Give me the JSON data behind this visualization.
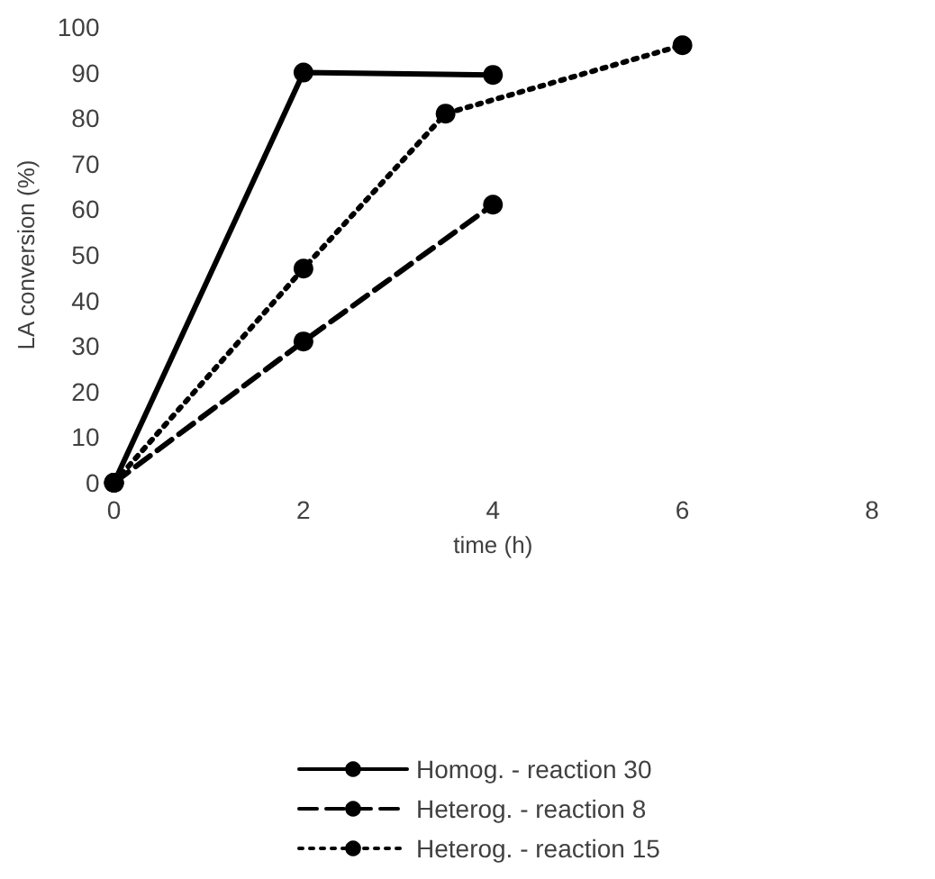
{
  "chart_data": {
    "type": "line",
    "xlabel": "time (h)",
    "ylabel": "LA conversion (%)",
    "xlim": [
      0,
      8
    ],
    "xticks": [
      0,
      2,
      4,
      6,
      8
    ],
    "ylim": [
      0,
      100
    ],
    "yticks": [
      0,
      10,
      20,
      30,
      40,
      50,
      60,
      70,
      80,
      90,
      100
    ],
    "grid": false,
    "legend": "bottom",
    "marker": "circle",
    "series": [
      {
        "name": "Homog. - reaction 30",
        "color": "#000000",
        "line_style": "solid",
        "x": [
          0,
          2,
          4
        ],
        "values": [
          0,
          90,
          89.5
        ]
      },
      {
        "name": "Heterog. - reaction 8",
        "color": "#000000",
        "line_style": "dashed",
        "x": [
          0,
          2,
          4
        ],
        "values": [
          0,
          31,
          61
        ]
      },
      {
        "name": "Heterog. - reaction 15",
        "color": "#000000",
        "line_style": "dotted",
        "x": [
          0,
          2,
          3.5,
          6
        ],
        "values": [
          0,
          47,
          81,
          96
        ]
      }
    ]
  }
}
